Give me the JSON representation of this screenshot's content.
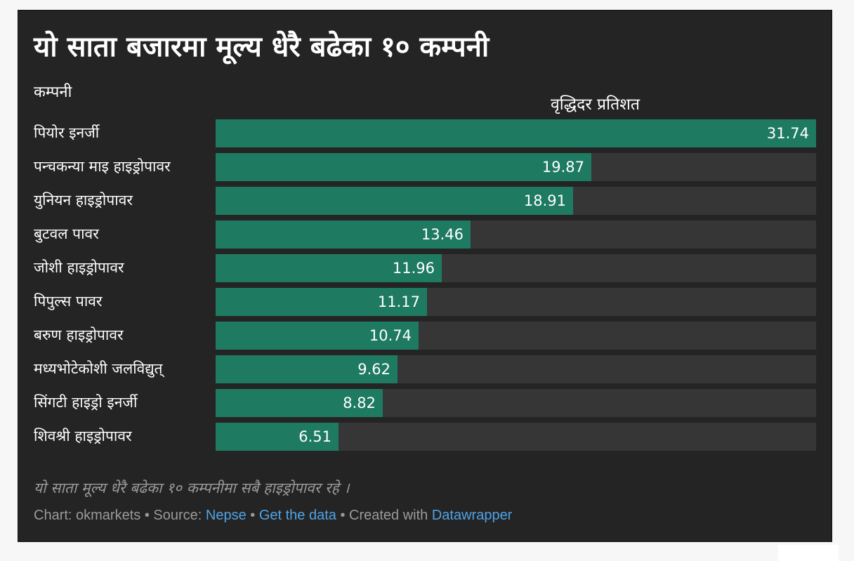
{
  "chart_data": {
    "type": "bar",
    "orientation": "horizontal",
    "title": "यो साता बजारमा मूल्य धेरै बढेका १० कम्पनी",
    "label_column_header": "कम्पनी",
    "value_column_header": "वृद्धिदर प्रतिशत",
    "categories": [
      "पियोर इनर्जी",
      "पन्चकन्या माइ हाइड्रोपावर",
      "युनियन हाइड्रोपावर",
      "बुटवल पावर",
      "जोशी हाइड्रोपावर",
      "पिपुल्स पावर",
      "बरुण हाइड्रोपावर",
      "मध्यभोटेकोशी जलविद्युत्",
      "सिंगटी हाइड्रो इनर्जी",
      "शिवश्री हाइड्रोपावर"
    ],
    "values": [
      31.74,
      19.87,
      18.91,
      13.46,
      11.96,
      11.17,
      10.74,
      9.62,
      8.82,
      6.51
    ],
    "value_labels": [
      "31.74",
      "19.87",
      "18.91",
      "13.46",
      "11.96",
      "11.17",
      "10.74",
      "9.62",
      "8.82",
      "6.51"
    ],
    "xlim": [
      0,
      31.74
    ],
    "grid": false,
    "note": "यो साता मूल्य धेरै बढेका १० कम्पनीमा सबै हाइड्रोपावर रहे ।"
  },
  "footer": {
    "chart_prefix": "Chart: okmarkets",
    "source_prefix": " • Source: ",
    "source_link": "Nepse",
    "sep1": " • ",
    "data_link": "Get the data",
    "created_prefix": " • Created with ",
    "tool_link": "Datawrapper"
  },
  "colors": {
    "background": "#242424",
    "bar": "#1f7a62",
    "track": "#363636",
    "text": "#ffffff",
    "muted_text": "#9a9a9a",
    "link": "#4fa3e6"
  }
}
